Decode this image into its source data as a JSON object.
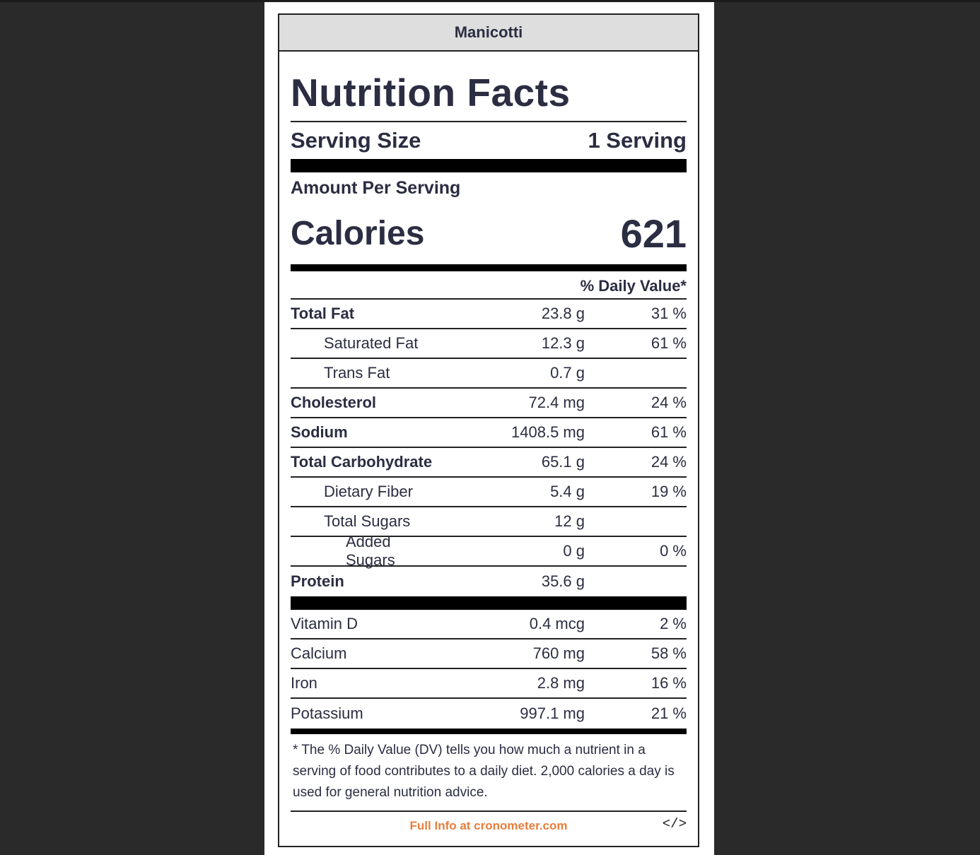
{
  "recipe_name": "Manicotti",
  "title": "Nutrition Facts",
  "serving": {
    "label": "Serving Size",
    "value": "1 Serving"
  },
  "amount_per_serving": "Amount Per Serving",
  "calories": {
    "label": "Calories",
    "value": "621"
  },
  "daily_value_header": "% Daily Value*",
  "nutrients": [
    {
      "name": "Total Fat",
      "amount": "23.8 g",
      "dv": "31 %"
    },
    {
      "name": "Saturated Fat",
      "amount": "12.3 g",
      "dv": "61 %"
    },
    {
      "name": "Trans Fat",
      "amount": "0.7 g",
      "dv": ""
    },
    {
      "name": "Cholesterol",
      "amount": "72.4 mg",
      "dv": "24 %"
    },
    {
      "name": "Sodium",
      "amount": "1408.5 mg",
      "dv": "61 %"
    },
    {
      "name": "Total Carbohydrate",
      "amount": "65.1 g",
      "dv": "24 %"
    },
    {
      "name": "Dietary Fiber",
      "amount": "5.4 g",
      "dv": "19 %"
    },
    {
      "name": "Total Sugars",
      "amount": "12 g",
      "dv": ""
    },
    {
      "name": "Added Sugars",
      "amount": "0 g",
      "dv": "0 %"
    },
    {
      "name": "Protein",
      "amount": "35.6 g",
      "dv": ""
    }
  ],
  "vitamins": [
    {
      "name": "Vitamin D",
      "amount": "0.4 mcg",
      "dv": "2 %"
    },
    {
      "name": "Calcium",
      "amount": "760 mg",
      "dv": "58 %"
    },
    {
      "name": "Iron",
      "amount": "2.8 mg",
      "dv": "16 %"
    },
    {
      "name": "Potassium",
      "amount": "997.1 mg",
      "dv": "21 %"
    }
  ],
  "footnote": "* The % Daily Value (DV) tells you how much a nutrient in a serving of food contributes to a daily diet. 2,000 calories a day is used for general nutrition advice.",
  "footer": {
    "link_text": "Full Info at cronometer.com",
    "embed_icon": "code-embed-icon",
    "embed_glyph": "</>"
  },
  "colors": {
    "background": "#2a2a2a",
    "panel": "#ffffff",
    "header_bg": "#dedede",
    "text": "#2b2d42",
    "link": "#e67e3c"
  }
}
